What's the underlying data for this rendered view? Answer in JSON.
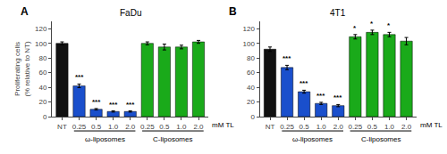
{
  "chart_data": [
    {
      "type": "bar",
      "title": "FaDu",
      "label": "A",
      "ylabel": "Proliferating cells\n(% relative to NT)",
      "xlabel": "mM TL",
      "categories": [
        "NT",
        "0.25",
        "0.5",
        "1.0",
        "2.0",
        "0.25",
        "0.5",
        "1.0",
        "2.0"
      ],
      "series": [
        {
          "color": "#111111",
          "values": [
            100,
            null,
            null,
            null,
            null,
            null,
            null,
            null,
            null
          ],
          "errors": [
            2,
            null,
            null,
            null,
            null,
            null,
            null,
            null,
            null
          ]
        },
        {
          "name": "ω-liposomes",
          "color": "#1a4fcc",
          "values": [
            null,
            42,
            10,
            7,
            7,
            null,
            null,
            null,
            null
          ],
          "errors": [
            null,
            2.5,
            1.0,
            0.8,
            0.8,
            null,
            null,
            null,
            null
          ],
          "annotations": [
            null,
            "***",
            "***",
            "***",
            "***",
            null,
            null,
            null,
            null
          ]
        },
        {
          "name": "C-liposomes",
          "color": "#1aaa1a",
          "values": [
            null,
            null,
            null,
            null,
            null,
            100,
            95,
            95,
            102
          ],
          "errors": [
            null,
            null,
            null,
            null,
            null,
            2.0,
            4.0,
            2.5,
            2.0
          ]
        }
      ],
      "ylim": [
        0,
        130
      ],
      "yticks": [
        0,
        20,
        40,
        60,
        80,
        100,
        120
      ],
      "grid": false
    },
    {
      "type": "bar",
      "title": "4T1",
      "label": "B",
      "xlabel": "mM TL",
      "categories": [
        "NT",
        "0.25",
        "0.5",
        "1.0",
        "2.0",
        "0.25",
        "0.5",
        "1.0",
        "2.0"
      ],
      "series": [
        {
          "color": "#111111",
          "values": [
            92,
            null,
            null,
            null,
            null,
            null,
            null,
            null,
            null
          ],
          "errors": [
            3,
            null,
            null,
            null,
            null,
            null,
            null,
            null,
            null
          ]
        },
        {
          "name": "ω-liposomes",
          "color": "#1a4fcc",
          "values": [
            null,
            67,
            34,
            18,
            15,
            null,
            null,
            null,
            null
          ],
          "errors": [
            null,
            3.0,
            2.0,
            1.5,
            1.5,
            null,
            null,
            null,
            null
          ],
          "annotations": [
            null,
            "***",
            "***",
            "***",
            "***",
            null,
            null,
            null,
            null
          ]
        },
        {
          "name": "C-liposomes",
          "color": "#1aaa1a",
          "values": [
            null,
            null,
            null,
            null,
            null,
            109,
            115,
            112,
            103
          ],
          "errors": [
            null,
            null,
            null,
            null,
            null,
            3.0,
            3.0,
            3.0,
            5.0
          ],
          "annotations": [
            null,
            null,
            null,
            null,
            null,
            "*",
            "*",
            "*",
            null
          ]
        }
      ],
      "ylim": [
        0,
        130
      ],
      "yticks": [
        0,
        20,
        40,
        60,
        80,
        100,
        120
      ],
      "grid": false
    }
  ]
}
